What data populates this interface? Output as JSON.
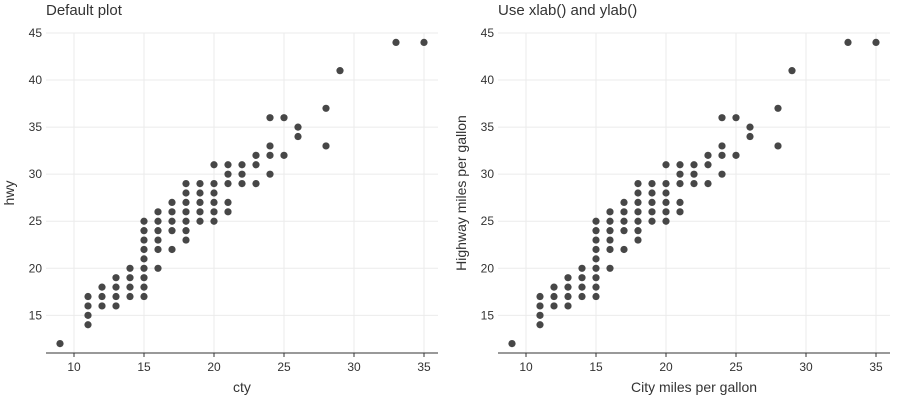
{
  "chart_data": [
    {
      "type": "scatter",
      "title": "Default plot",
      "xlabel": "cty",
      "ylabel": "hwy",
      "xlim": [
        8,
        36
      ],
      "ylim": [
        11,
        45
      ],
      "xticks": [
        10,
        15,
        20,
        25,
        30,
        35
      ],
      "yticks": [
        15,
        20,
        25,
        30,
        35,
        40,
        45
      ],
      "grid": true,
      "point_color": "#474747",
      "points": [
        [
          9,
          12
        ],
        [
          11,
          14
        ],
        [
          11,
          15
        ],
        [
          11,
          16
        ],
        [
          11,
          17
        ],
        [
          12,
          16
        ],
        [
          12,
          17
        ],
        [
          12,
          18
        ],
        [
          13,
          16
        ],
        [
          13,
          17
        ],
        [
          13,
          18
        ],
        [
          13,
          19
        ],
        [
          14,
          17
        ],
        [
          14,
          18
        ],
        [
          14,
          19
        ],
        [
          14,
          20
        ],
        [
          15,
          17
        ],
        [
          15,
          18
        ],
        [
          15,
          19
        ],
        [
          15,
          20
        ],
        [
          15,
          21
        ],
        [
          15,
          22
        ],
        [
          15,
          23
        ],
        [
          15,
          24
        ],
        [
          15,
          25
        ],
        [
          16,
          20
        ],
        [
          16,
          22
        ],
        [
          16,
          23
        ],
        [
          16,
          24
        ],
        [
          16,
          25
        ],
        [
          16,
          26
        ],
        [
          17,
          22
        ],
        [
          17,
          24
        ],
        [
          17,
          25
        ],
        [
          17,
          26
        ],
        [
          17,
          27
        ],
        [
          18,
          23
        ],
        [
          18,
          24
        ],
        [
          18,
          25
        ],
        [
          18,
          26
        ],
        [
          18,
          27
        ],
        [
          18,
          28
        ],
        [
          18,
          29
        ],
        [
          19,
          25
        ],
        [
          19,
          26
        ],
        [
          19,
          27
        ],
        [
          19,
          28
        ],
        [
          19,
          29
        ],
        [
          20,
          25
        ],
        [
          20,
          26
        ],
        [
          20,
          27
        ],
        [
          20,
          28
        ],
        [
          20,
          29
        ],
        [
          20,
          31
        ],
        [
          21,
          26
        ],
        [
          21,
          27
        ],
        [
          21,
          29
        ],
        [
          21,
          30
        ],
        [
          21,
          31
        ],
        [
          22,
          29
        ],
        [
          22,
          30
        ],
        [
          22,
          31
        ],
        [
          23,
          29
        ],
        [
          23,
          31
        ],
        [
          23,
          32
        ],
        [
          24,
          30
        ],
        [
          24,
          32
        ],
        [
          24,
          33
        ],
        [
          24,
          36
        ],
        [
          25,
          32
        ],
        [
          25,
          36
        ],
        [
          26,
          34
        ],
        [
          26,
          35
        ],
        [
          28,
          33
        ],
        [
          28,
          37
        ],
        [
          29,
          41
        ],
        [
          33,
          44
        ],
        [
          35,
          44
        ]
      ]
    },
    {
      "type": "scatter",
      "title": "Use xlab() and ylab()",
      "xlabel": "City miles per gallon",
      "ylabel": "Highway miles per gallon",
      "xlim": [
        8,
        36
      ],
      "ylim": [
        11,
        45
      ],
      "xticks": [
        10,
        15,
        20,
        25,
        30,
        35
      ],
      "yticks": [
        15,
        20,
        25,
        30,
        35,
        40,
        45
      ],
      "grid": true,
      "point_color": "#474747",
      "points": [
        [
          9,
          12
        ],
        [
          11,
          14
        ],
        [
          11,
          15
        ],
        [
          11,
          16
        ],
        [
          11,
          17
        ],
        [
          12,
          16
        ],
        [
          12,
          17
        ],
        [
          12,
          18
        ],
        [
          13,
          16
        ],
        [
          13,
          17
        ],
        [
          13,
          18
        ],
        [
          13,
          19
        ],
        [
          14,
          17
        ],
        [
          14,
          18
        ],
        [
          14,
          19
        ],
        [
          14,
          20
        ],
        [
          15,
          17
        ],
        [
          15,
          18
        ],
        [
          15,
          19
        ],
        [
          15,
          20
        ],
        [
          15,
          21
        ],
        [
          15,
          22
        ],
        [
          15,
          23
        ],
        [
          15,
          24
        ],
        [
          15,
          25
        ],
        [
          16,
          20
        ],
        [
          16,
          22
        ],
        [
          16,
          23
        ],
        [
          16,
          24
        ],
        [
          16,
          25
        ],
        [
          16,
          26
        ],
        [
          17,
          22
        ],
        [
          17,
          24
        ],
        [
          17,
          25
        ],
        [
          17,
          26
        ],
        [
          17,
          27
        ],
        [
          18,
          23
        ],
        [
          18,
          24
        ],
        [
          18,
          25
        ],
        [
          18,
          26
        ],
        [
          18,
          27
        ],
        [
          18,
          28
        ],
        [
          18,
          29
        ],
        [
          19,
          25
        ],
        [
          19,
          26
        ],
        [
          19,
          27
        ],
        [
          19,
          28
        ],
        [
          19,
          29
        ],
        [
          20,
          25
        ],
        [
          20,
          26
        ],
        [
          20,
          27
        ],
        [
          20,
          28
        ],
        [
          20,
          29
        ],
        [
          20,
          31
        ],
        [
          21,
          26
        ],
        [
          21,
          27
        ],
        [
          21,
          29
        ],
        [
          21,
          30
        ],
        [
          21,
          31
        ],
        [
          22,
          29
        ],
        [
          22,
          30
        ],
        [
          22,
          31
        ],
        [
          23,
          29
        ],
        [
          23,
          31
        ],
        [
          23,
          32
        ],
        [
          24,
          30
        ],
        [
          24,
          32
        ],
        [
          24,
          33
        ],
        [
          24,
          36
        ],
        [
          25,
          32
        ],
        [
          25,
          36
        ],
        [
          26,
          34
        ],
        [
          26,
          35
        ],
        [
          28,
          33
        ],
        [
          28,
          37
        ],
        [
          29,
          41
        ],
        [
          33,
          44
        ],
        [
          35,
          44
        ]
      ]
    }
  ]
}
